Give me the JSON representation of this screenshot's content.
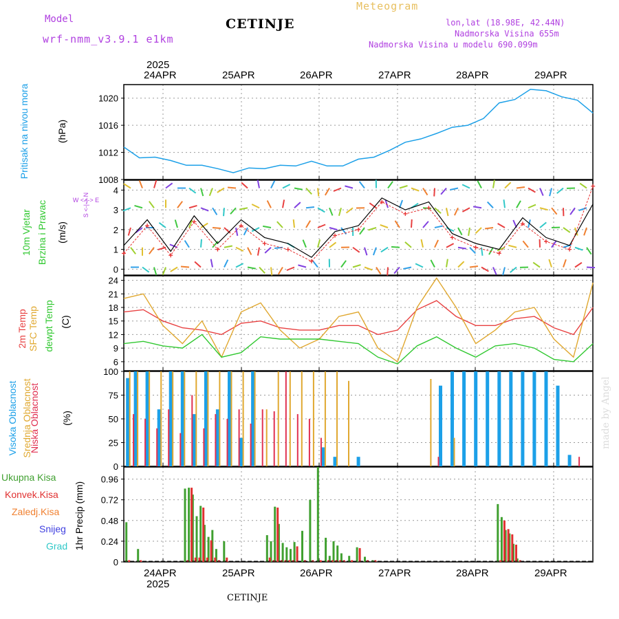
{
  "header": {
    "model_label": "Model",
    "model_name": "wrf-nmm_v3.9.1 e1km",
    "station": "CETINJE",
    "product": "Meteogram",
    "coords": "lon,lat (18.98E, 42.44N)",
    "elevation": "Nadmorska Visina 655m",
    "model_elevation": "Nadmorska Visina u modelu 690.099m",
    "footer_station": "CETINJE",
    "credit": "made by Angel"
  },
  "time_axis": {
    "year": "2025",
    "days": [
      "24APR",
      "25APR",
      "26APR",
      "27APR",
      "28APR",
      "29APR"
    ]
  },
  "panels": {
    "pressure": {
      "label": "Pritisak na nivou mora",
      "unit": "(hPa)"
    },
    "wind": {
      "label1": "10m Vjetar",
      "label2": "Brzina i Pravac",
      "unit": "(m/s)",
      "compass": "W <-|-> E",
      "compass_ns": "S <-|-> N"
    },
    "temp": {
      "label1": "2m Temp",
      "label2": "SFC Temp",
      "label3": "dewpt Temp",
      "unit": "(C)"
    },
    "cloud": {
      "label1": "Visoka Oblacnost",
      "label2": "Srednja Oblacnost",
      "label3": "Niska Oblacnost",
      "unit": "(%)"
    },
    "precip": {
      "unit_label": "1hr Precip (mm)",
      "legend": [
        "Ukupna Kisa",
        "Konvek.Kisa",
        "Zaledj.Kisa",
        "Snijeg",
        "Grad"
      ]
    }
  },
  "colors": {
    "pressure": "#1ca0e8",
    "wind_speed": "#000000",
    "gust": "#e83030",
    "t2m": "#e84040",
    "sfc": "#e0a830",
    "dew": "#30c830",
    "high_cloud": "#1ca0e8",
    "mid_cloud": "#e0a830",
    "low_cloud": "#e03050",
    "total_rain": "#40a030",
    "conv_rain": "#e03030",
    "freezing": "#f08030",
    "snow": "#4040e0",
    "hail": "#30c8c8",
    "purple": "#b040e0"
  },
  "chart_data": [
    {
      "type": "line",
      "title": "Pritisak na nivou mora",
      "ylabel": "(hPa)",
      "ylim": [
        1008,
        1022
      ],
      "yticks": [
        1008,
        1012,
        1016,
        1020
      ],
      "x": [
        0,
        0.2,
        0.4,
        0.6,
        0.8,
        1.0,
        1.2,
        1.4,
        1.6,
        1.8,
        2.0,
        2.2,
        2.4,
        2.6,
        2.8,
        3.0,
        3.2,
        3.4,
        3.6,
        3.8,
        4.0,
        4.2,
        4.4,
        4.6,
        4.8,
        5.0,
        5.2,
        5.4,
        5.6,
        5.8,
        6.0
      ],
      "series": [
        {
          "values": [
            1012.8,
            1011.2,
            1011.3,
            1010.8,
            1010.1,
            1010.1,
            1009.6,
            1009.0,
            1009.7,
            1009.6,
            1010.1,
            1010.0,
            1010.7,
            1010.0,
            1010.0,
            1011.0,
            1011.3,
            1012.3,
            1013.5,
            1014.0,
            1014.8,
            1015.7,
            1016.0,
            1017.0,
            1019.3,
            1019.8,
            1021.3,
            1021.1,
            1020.2,
            1019.7,
            1017.8
          ]
        }
      ]
    },
    {
      "type": "line",
      "title": "10m Vjetar Brzina i Pravac",
      "ylabel": "(m/s)",
      "ylim": [
        -0.3,
        4.5
      ],
      "yticks": [
        0,
        1,
        2,
        3,
        4
      ],
      "x": [
        0,
        0.3,
        0.6,
        0.9,
        1.2,
        1.5,
        1.8,
        2.1,
        2.4,
        2.7,
        3.0,
        3.3,
        3.6,
        3.9,
        4.2,
        4.5,
        4.8,
        5.1,
        5.4,
        5.7,
        6.0
      ],
      "series": [
        {
          "values": [
            1.2,
            2.5,
            0.9,
            2.7,
            1.3,
            2.5,
            1.6,
            1.3,
            0.6,
            1.9,
            2.2,
            3.6,
            3.0,
            3.4,
            1.8,
            1.3,
            1.0,
            2.6,
            1.6,
            1.2,
            3.3
          ]
        },
        {
          "values": [
            0.8,
            2.2,
            0.7,
            2.4,
            1.0,
            2.2,
            1.3,
            1.0,
            0.4,
            1.7,
            2.0,
            3.4,
            2.8,
            3.1,
            1.6,
            1.1,
            0.8,
            2.3,
            1.4,
            1.0,
            4.2
          ]
        }
      ]
    },
    {
      "type": "line",
      "title": "2m Temp / SFC Temp / dewpt Temp",
      "ylabel": "(C)",
      "ylim": [
        4,
        25
      ],
      "yticks": [
        6,
        9,
        12,
        15,
        18,
        21,
        24
      ],
      "x": [
        0,
        0.25,
        0.5,
        0.75,
        1.0,
        1.25,
        1.5,
        1.75,
        2.0,
        2.25,
        2.5,
        2.75,
        3.0,
        3.25,
        3.5,
        3.75,
        4.0,
        4.25,
        4.5,
        4.75,
        5.0,
        5.25,
        5.5,
        5.75,
        6.0
      ],
      "series": [
        {
          "name": "2m Temp",
          "values": [
            17,
            17.5,
            15,
            13.5,
            13,
            12,
            14.5,
            15,
            13.5,
            13,
            13,
            14,
            14,
            12,
            13,
            17.5,
            19.5,
            16,
            14,
            14,
            15.5,
            16,
            13.5,
            12,
            18
          ]
        },
        {
          "name": "SFC Temp",
          "values": [
            20,
            21,
            14,
            10,
            15,
            7,
            17,
            19,
            13,
            9,
            11,
            16,
            17,
            9,
            6,
            18,
            24.5,
            18,
            10,
            13,
            17,
            18,
            11,
            7,
            23.5
          ]
        },
        {
          "name": "dewpt Temp",
          "values": [
            10,
            10.5,
            9.5,
            9,
            12,
            7,
            8,
            11.5,
            11,
            11,
            11,
            10.5,
            10,
            7,
            5.5,
            9.5,
            11.5,
            9,
            7,
            9.5,
            10,
            9,
            6.5,
            6,
            10
          ]
        }
      ]
    },
    {
      "type": "bar",
      "title": "Visoka / Srednja / Niska Oblacnost",
      "ylabel": "(%)",
      "ylim": [
        0,
        100
      ],
      "yticks": [
        0,
        25,
        50,
        75,
        100
      ],
      "x": [
        0.05,
        0.15,
        0.3,
        0.45,
        0.6,
        0.75,
        0.9,
        1.05,
        1.2,
        1.35,
        1.5,
        1.65,
        1.8,
        1.95,
        2.1,
        2.25,
        2.4,
        2.55,
        2.7,
        2.85,
        3.0,
        3.3,
        3.6,
        3.9,
        4.05,
        4.2,
        4.35,
        4.5,
        4.65,
        4.8,
        4.95,
        5.1,
        5.25,
        5.4,
        5.55,
        5.7,
        5.85
      ],
      "series": [
        {
          "name": "Visoka Oblacnost",
          "values": [
            93,
            100,
            100,
            60,
            100,
            100,
            55,
            100,
            60,
            100,
            30,
            100,
            0,
            0,
            0,
            0,
            0,
            20,
            10,
            0,
            10,
            0,
            0,
            0,
            85,
            100,
            100,
            100,
            100,
            100,
            100,
            100,
            100,
            100,
            85,
            12,
            0
          ]
        },
        {
          "name": "Srednja Oblacnost",
          "values": [
            100,
            100,
            100,
            100,
            100,
            100,
            100,
            100,
            100,
            100,
            100,
            100,
            60,
            100,
            100,
            100,
            100,
            100,
            100,
            90,
            0,
            0,
            0,
            92,
            0,
            30,
            0,
            0,
            0,
            0,
            0,
            0,
            0,
            0,
            0,
            0,
            0
          ]
        },
        {
          "name": "Niska Oblacnost",
          "values": [
            0,
            55,
            50,
            40,
            60,
            35,
            75,
            40,
            55,
            50,
            60,
            45,
            60,
            58,
            100,
            55,
            50,
            30,
            0,
            0,
            0,
            0,
            0,
            0,
            10,
            0,
            0,
            0,
            0,
            0,
            0,
            0,
            0,
            0,
            0,
            0,
            10
          ]
        }
      ]
    },
    {
      "type": "bar",
      "title": "1hr Precip",
      "ylabel": "1hr Precip (mm)",
      "ylim": [
        0,
        1.1
      ],
      "yticks": [
        0,
        0.24,
        0.48,
        0.72,
        0.96
      ],
      "x": [
        0.05,
        0.2,
        0.8,
        0.85,
        0.9,
        0.95,
        1.0,
        1.05,
        1.1,
        1.15,
        1.2,
        1.3,
        1.85,
        1.9,
        1.95,
        2.0,
        2.05,
        2.1,
        2.15,
        2.2,
        2.3,
        2.4,
        2.5,
        2.6,
        2.65,
        2.7,
        2.75,
        2.8,
        2.9,
        3.0,
        3.1,
        3.2,
        4.8,
        4.85,
        4.9,
        4.95,
        5.0,
        5.05
      ],
      "series": [
        {
          "name": "Ukupna Kisa",
          "values": [
            0.46,
            0.15,
            0.85,
            0.86,
            0.78,
            0.53,
            0.65,
            0.43,
            0.29,
            0.37,
            0.15,
            0.24,
            0.31,
            0.24,
            0.64,
            0.44,
            0.22,
            0.17,
            0.15,
            0.23,
            0.36,
            0.72,
            1.1,
            0.28,
            0.07,
            0.24,
            0.19,
            0.1,
            0.07,
            0.17,
            0.06,
            0.02,
            0.67,
            0.52,
            0.37,
            0.33,
            0.21,
            0.04
          ]
        },
        {
          "name": "Konvek.Kisa",
          "values": [
            0.02,
            0.02,
            0.02,
            0.86,
            0.05,
            0.05,
            0.63,
            0.05,
            0.25,
            0.05,
            0.02,
            0.05,
            0.05,
            0.02,
            0.63,
            0.02,
            0.02,
            0.02,
            0.02,
            0.18,
            0.02,
            0.02,
            0.02,
            0.02,
            0.02,
            0.02,
            0.02,
            0.02,
            0.02,
            0.16,
            0.02,
            0.02,
            0.02,
            0.48,
            0.38,
            0.32,
            0.2,
            0.02
          ]
        }
      ]
    }
  ]
}
